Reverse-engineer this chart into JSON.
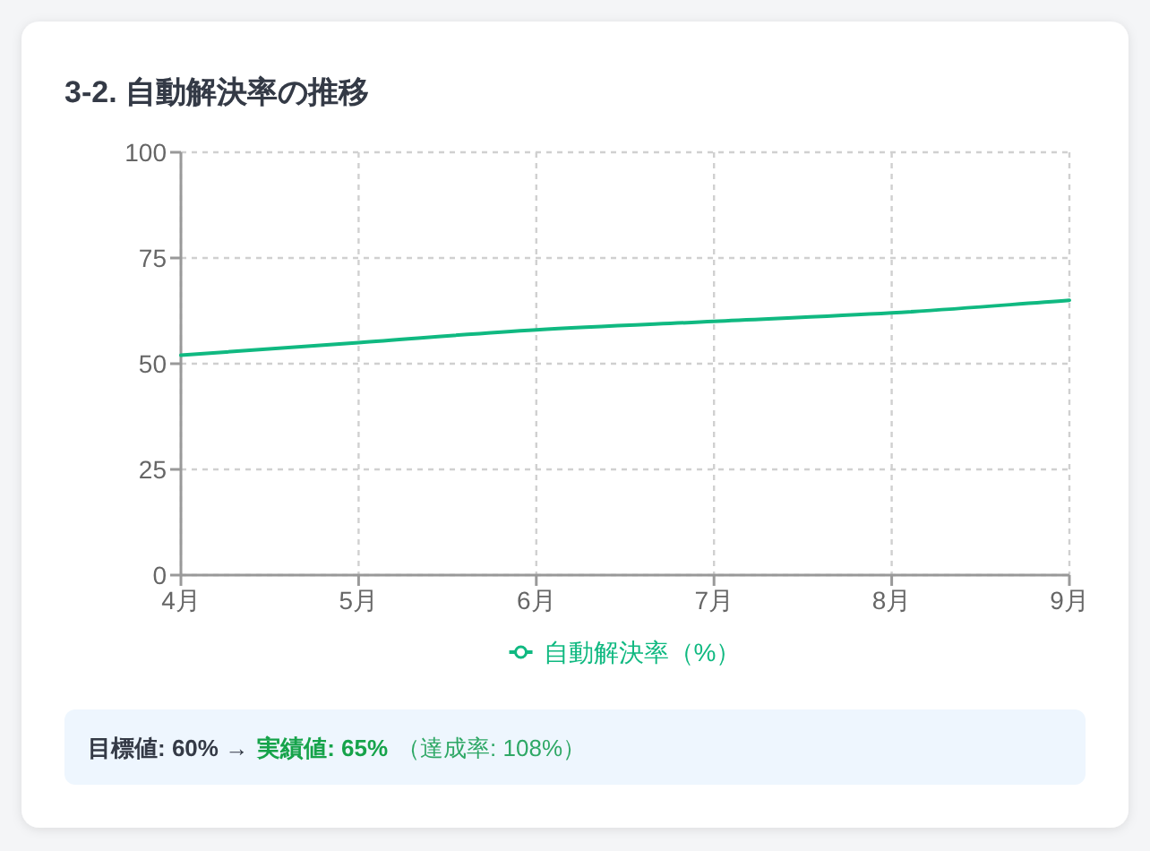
{
  "chart_data": {
    "type": "line",
    "title": "3-2. 自動解決率の推移",
    "categories": [
      "4月",
      "5月",
      "6月",
      "7月",
      "8月",
      "9月"
    ],
    "series": [
      {
        "name": "自動解決率（%）",
        "color": "#10b981",
        "values": [
          52,
          55,
          58,
          60,
          62,
          65
        ]
      }
    ],
    "ylim": [
      0,
      100
    ],
    "yticks": [
      0,
      25,
      50,
      75,
      100
    ],
    "grid": true,
    "legend": "bottom",
    "annotations": [
      "目標値: 60% →",
      "実績値: 65%",
      "（達成率: 108%）"
    ]
  }
}
